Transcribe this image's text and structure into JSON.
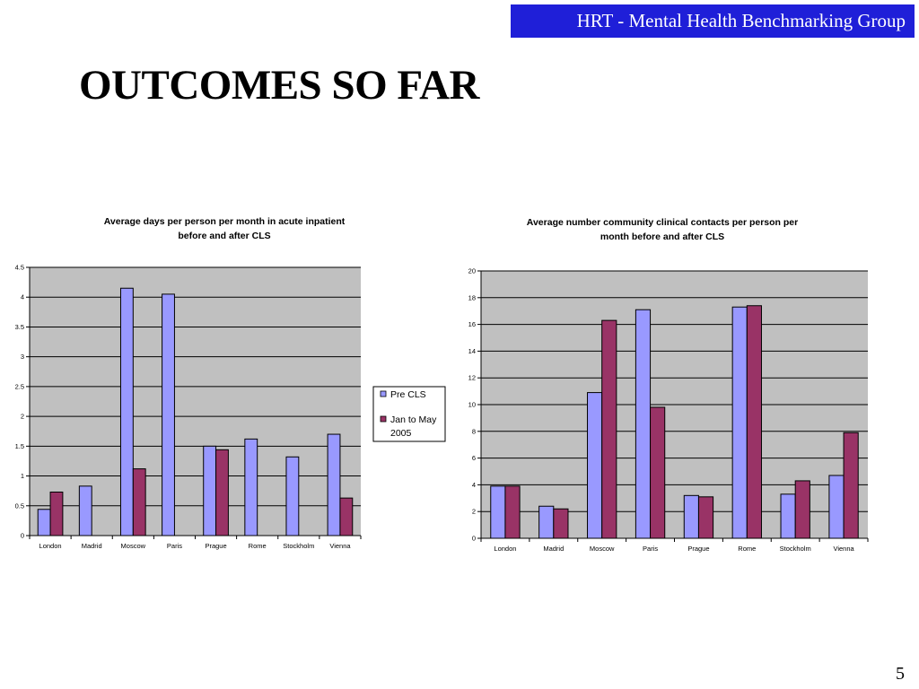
{
  "header": {
    "text": "HRT - Mental Health Benchmarking Group"
  },
  "page": {
    "title": "OUTCOMES SO FAR",
    "number": "5"
  },
  "colors": {
    "pre": "#9999ff",
    "post": "#993366",
    "plot_bg": "#c0c0c0",
    "header_bg": "#1f1fd8"
  },
  "chart_data": [
    {
      "type": "bar",
      "title_lines": [
        "Average days per person per month in acute inpatient",
        "before and after CLS"
      ],
      "categories": [
        "London",
        "Madrid",
        "Moscow",
        "Paris",
        "Prague",
        "Rome",
        "Stockholm",
        "Vienna"
      ],
      "series": [
        {
          "name": "Pre CLS",
          "values": [
            0.44,
            0.83,
            4.15,
            4.05,
            1.5,
            1.62,
            1.32,
            1.7
          ]
        },
        {
          "name_lines": [
            "Jan to May",
            "2005"
          ],
          "values": [
            0.73,
            null,
            1.12,
            null,
            1.44,
            null,
            null,
            0.63
          ]
        }
      ],
      "ylim": [
        0,
        4.5
      ],
      "yticks": [
        "0",
        "0.5",
        "1",
        "1.5",
        "2",
        "2.5",
        "3",
        "3.5",
        "4",
        "4.5"
      ],
      "grid": true,
      "legend": "right"
    },
    {
      "type": "bar",
      "title_lines": [
        "Average number community clinical contacts per person per",
        "month before and after CLS"
      ],
      "categories": [
        "London",
        "Madrid",
        "Moscow",
        "Paris",
        "Prague",
        "Rome",
        "Stockholm",
        "Vienna"
      ],
      "series": [
        {
          "name": "Pre CLS",
          "values": [
            3.9,
            2.4,
            10.9,
            17.1,
            3.2,
            17.3,
            3.3,
            4.7
          ]
        },
        {
          "name": "Jan to May 2005",
          "values": [
            3.9,
            2.2,
            16.3,
            9.8,
            3.1,
            17.4,
            4.3,
            7.9
          ]
        }
      ],
      "ylim": [
        0,
        20
      ],
      "yticks": [
        "0",
        "2",
        "4",
        "6",
        "8",
        "10",
        "12",
        "14",
        "16",
        "18",
        "20"
      ],
      "grid": true,
      "legend": "none"
    }
  ]
}
